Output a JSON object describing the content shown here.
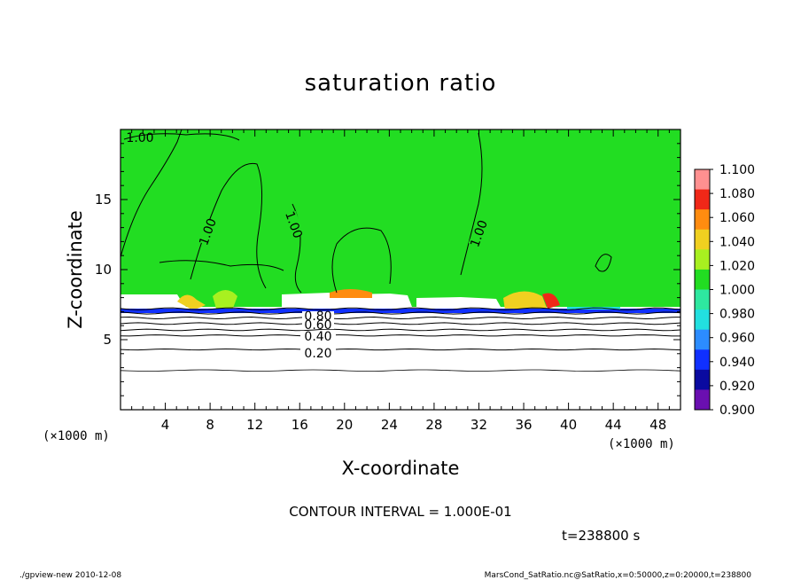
{
  "chart_data": {
    "type": "heatmap",
    "title": "saturation ratio",
    "xlabel": "X-coordinate",
    "ylabel": "Z-coordinate",
    "x_unit_left": "(×1000 m)",
    "x_unit_right": "(×1000 m)",
    "xlim": [
      0,
      50
    ],
    "ylim": [
      0,
      20
    ],
    "xticks": [
      "4",
      "8",
      "12",
      "16",
      "20",
      "24",
      "28",
      "32",
      "36",
      "40",
      "44",
      "48"
    ],
    "yticks": [
      "5",
      "10",
      "15"
    ],
    "contour_interval_text": "CONTOUR INTERVAL = 1.000E-01",
    "time_text": "t=238800 s",
    "contour_labels": [
      "1.00",
      "1.00",
      "1.00",
      "1.00",
      "0.80",
      "0.60",
      "0.40",
      "0.20"
    ],
    "colorbar": {
      "levels": [
        "0.900",
        "0.920",
        "0.940",
        "0.960",
        "0.980",
        "1.000",
        "1.020",
        "1.040",
        "1.060",
        "1.080",
        "1.100"
      ],
      "colors": [
        "#6a0fb0",
        "#0a0aa0",
        "#1030ff",
        "#2c8cff",
        "#22e0e0",
        "#2ee8a0",
        "#22dd22",
        "#a8f020",
        "#f0d020",
        "#ff8c10",
        "#f02818",
        "#ff9090"
      ]
    },
    "contour_levels_lower": [
      0.2,
      0.4,
      0.5,
      0.6,
      0.7,
      0.8,
      0.9
    ],
    "contour_heights_km": [
      4.3,
      5.3,
      5.7,
      6.15,
      6.55,
      6.9,
      7.2
    ]
  },
  "footer": {
    "left": "./gpview-new   2010-12-08",
    "right": "MarsCond_SatRatio.nc@SatRatio,x=0:50000,z=0:20000,t=238800"
  }
}
